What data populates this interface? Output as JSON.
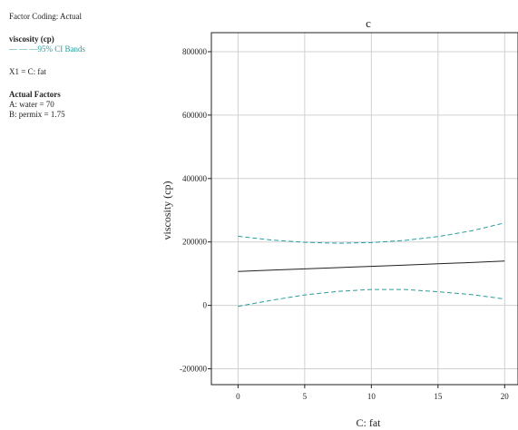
{
  "sidebar": {
    "factor_coding": "Factor Coding: Actual",
    "response_title": "viscosity (cp)",
    "ci_legend": "— — —95% CI Bands",
    "x1_label": "X1 = C: fat",
    "actual_factors_title": "Actual Factors",
    "factor_a": "A: water = 70",
    "factor_b": "B: permix = 1.75"
  },
  "chart_data": {
    "type": "line",
    "title": "c",
    "xlabel": "C: fat",
    "ylabel": "viscosity (cp)",
    "xlim": [
      -2,
      21
    ],
    "ylim": [
      -250000,
      860000
    ],
    "x_ticks": [
      0,
      5,
      10,
      15,
      20
    ],
    "y_ticks": [
      -200000,
      0,
      200000,
      400000,
      600000,
      800000
    ],
    "y_tick_labels": [
      "-200000",
      "0",
      "200000",
      "400000",
      "600000",
      "800000"
    ],
    "grid": true,
    "colors": {
      "fit": "#222222",
      "ci": "#2a9d9d",
      "grid": "#d0d0d0"
    },
    "x": [
      0,
      2.5,
      5,
      7.5,
      10,
      12.5,
      15,
      17.5,
      20
    ],
    "series": [
      {
        "name": "viscosity (cp)",
        "style": "solid",
        "values": [
          107000,
          111000,
          115000,
          119000,
          123000,
          127000,
          131000,
          135000,
          140000
        ]
      },
      {
        "name": "95% CI Bands",
        "style": "dashed",
        "values": [
          218000,
          206000,
          199000,
          196000,
          198000,
          205000,
          217000,
          235000,
          260000
        ]
      },
      {
        "name": "95% CI Bands",
        "style": "dashed",
        "values": [
          -3000,
          16000,
          33000,
          44000,
          50000,
          50000,
          43000,
          34000,
          20000
        ]
      }
    ]
  }
}
